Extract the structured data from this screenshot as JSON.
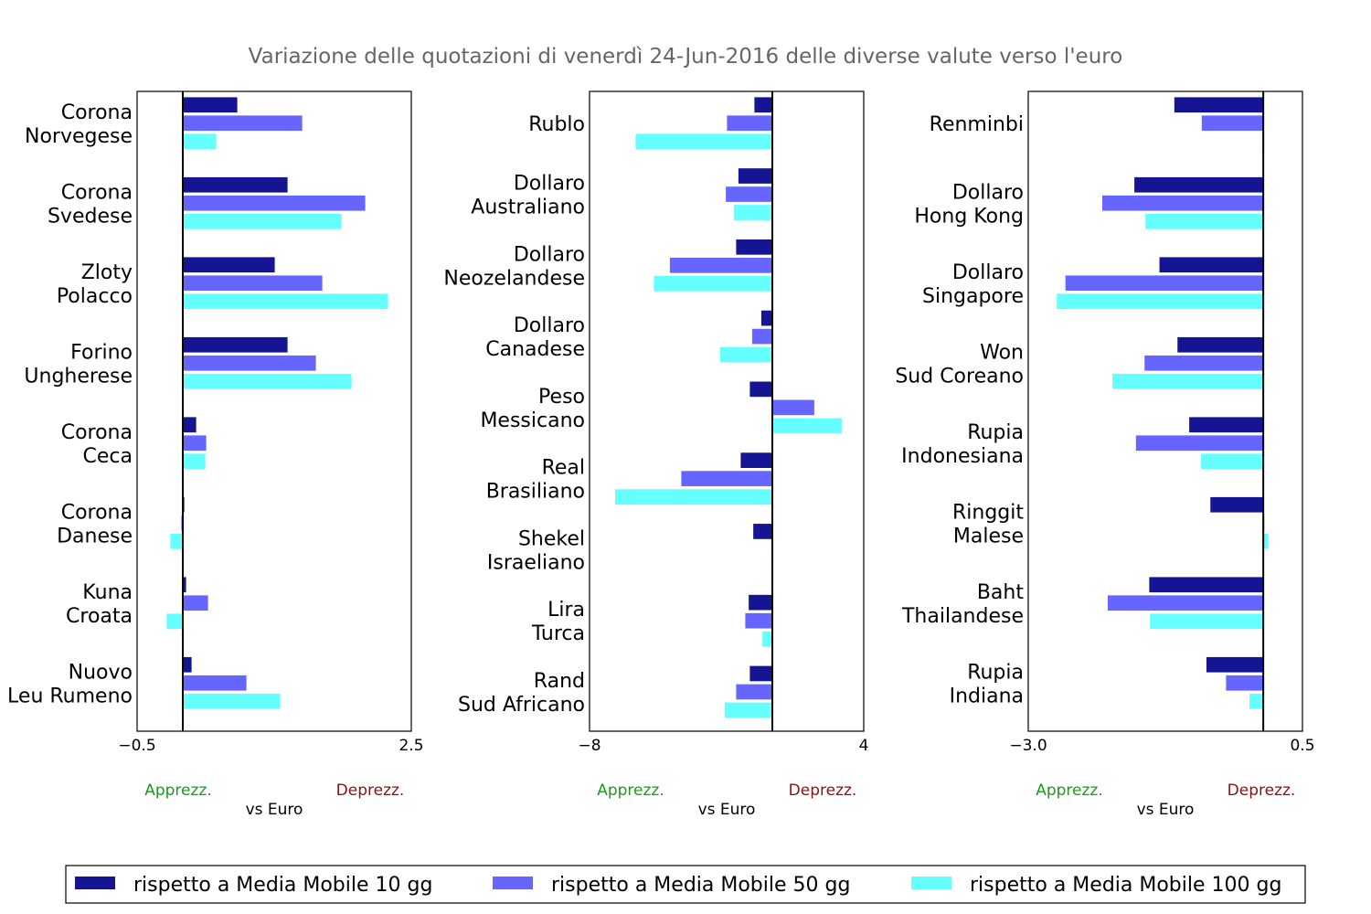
{
  "chart_data": {
    "type": "bar",
    "orientation": "horizontal",
    "title": "Variazione delle quotazioni di venerdì 24-Jun-2016 delle diverse valute verso l'euro",
    "xlabel": "vs Euro",
    "appreciation_label": "Apprezz.",
    "depreciation_label": "Deprezz.",
    "series_names": [
      "rispetto a Media Mobile 10 gg",
      "rispetto a Media Mobile 50 gg",
      "rispetto a Media Mobile 100 gg"
    ],
    "colors": [
      "#151594",
      "#6666ff",
      "#66ffff"
    ],
    "legend_position": "bottom",
    "panels": [
      {
        "xlim": [
          -0.5,
          2.5
        ],
        "xticks": [
          "−0.5",
          "2.5"
        ],
        "categories": [
          [
            "Corona",
            "Norvegese"
          ],
          [
            "Corona",
            "Svedese"
          ],
          [
            "Zloty",
            "Polacco"
          ],
          [
            "Forino",
            "Ungherese"
          ],
          [
            "Corona",
            "Ceca"
          ],
          [
            "Corona",
            "Danese"
          ],
          [
            "Kuna",
            "Croata"
          ],
          [
            "Nuovo",
            "Leu Rumeno"
          ]
        ],
        "values": [
          [
            0.6,
            1.31,
            0.37
          ],
          [
            1.15,
            2.0,
            1.74
          ],
          [
            1.01,
            1.53,
            2.25
          ],
          [
            1.15,
            1.46,
            1.85
          ],
          [
            0.15,
            0.26,
            0.25
          ],
          [
            0.02,
            -0.02,
            -0.14
          ],
          [
            0.04,
            0.28,
            -0.18
          ],
          [
            0.1,
            0.7,
            1.07
          ]
        ]
      },
      {
        "xlim": [
          -8,
          4
        ],
        "xticks": [
          "−8",
          "4"
        ],
        "categories": [
          [
            "Rublo"
          ],
          [
            "Dollaro",
            "Australiano"
          ],
          [
            "Dollaro",
            "Neozelandese"
          ],
          [
            "Dollaro",
            "Canadese"
          ],
          [
            "Peso",
            "Messicano"
          ],
          [
            "Real",
            "Brasiliano"
          ],
          [
            "Shekel",
            "Israeliano"
          ],
          [
            "Lira",
            "Turca"
          ],
          [
            "Rand",
            "Sud Africano"
          ]
        ],
        "values": [
          [
            -0.8,
            -2.0,
            -6.0
          ],
          [
            -1.5,
            -2.05,
            -1.7
          ],
          [
            -1.6,
            -4.5,
            -5.2
          ],
          [
            -0.5,
            -0.9,
            -2.3
          ],
          [
            -1.0,
            1.85,
            3.05
          ],
          [
            -1.4,
            -4.0,
            -6.9
          ],
          [
            -0.85,
            -0.05,
            0.0
          ],
          [
            -1.05,
            -1.2,
            -0.45
          ],
          [
            -1.0,
            -1.6,
            -2.1
          ]
        ]
      },
      {
        "xlim": [
          -3.0,
          0.5
        ],
        "xticks": [
          "−3.0",
          "0.5"
        ],
        "categories": [
          [
            "Renminbi"
          ],
          [
            "Dollaro",
            "Hong Kong"
          ],
          [
            "Dollaro",
            "Singapore"
          ],
          [
            "Won",
            "Sud Coreano"
          ],
          [
            "Rupia",
            "Indonesiana"
          ],
          [
            "Ringgit",
            "Malese"
          ],
          [
            "Baht",
            "Thailandese"
          ],
          [
            "Rupia",
            "Indiana"
          ]
        ],
        "values": [
          [
            -1.14,
            -0.79,
            0.0
          ],
          [
            -1.65,
            -2.06,
            -1.51
          ],
          [
            -1.33,
            -2.53,
            -2.64
          ],
          [
            -1.1,
            -1.52,
            -1.93
          ],
          [
            -0.95,
            -1.63,
            -0.8
          ],
          [
            -0.68,
            0.0,
            0.07
          ],
          [
            -1.46,
            -1.99,
            -1.45
          ],
          [
            -0.73,
            -0.48,
            -0.18
          ]
        ]
      }
    ]
  }
}
